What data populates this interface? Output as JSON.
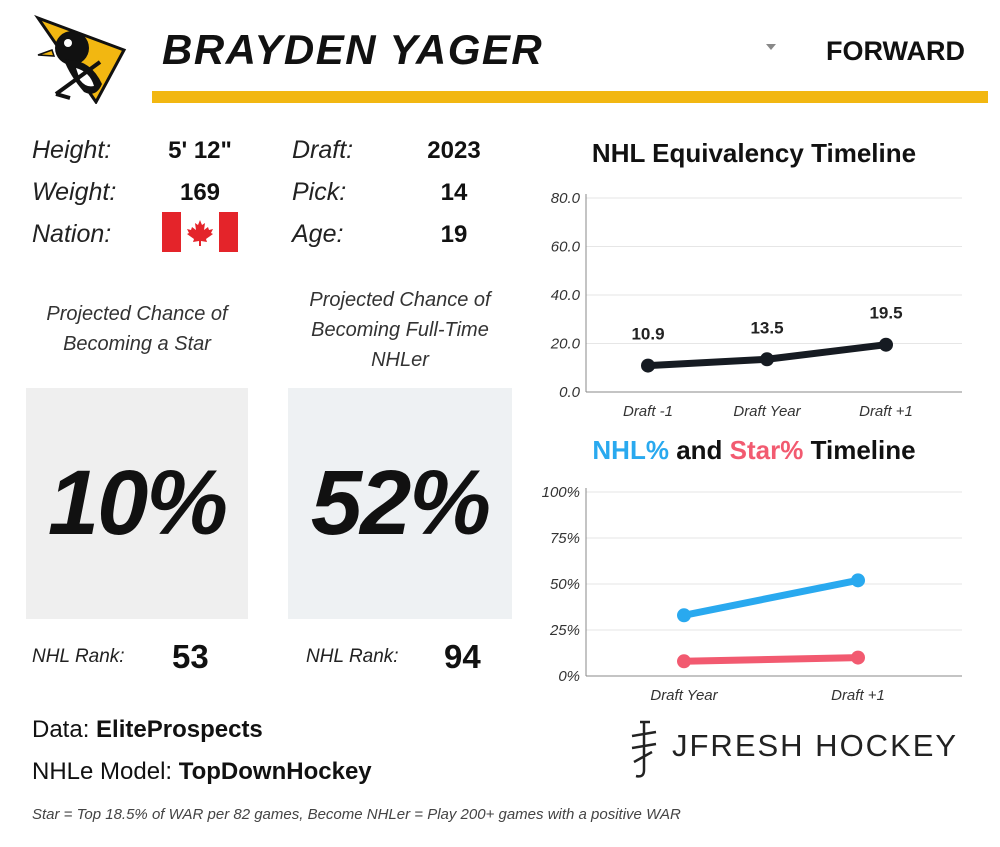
{
  "header": {
    "player_name": "BRAYDEN YAGER",
    "position": "FORWARD",
    "bar_color": "#f2b711"
  },
  "bio": {
    "height_label": "Height:",
    "height_value": "5' 12\"",
    "weight_label": "Weight:",
    "weight_value": "169",
    "nation_label": "Nation:",
    "nation_flag": "canada-flag-icon",
    "draft_label": "Draft:",
    "draft_value": "2023",
    "pick_label": "Pick:",
    "pick_value": "14",
    "age_label": "Age:",
    "age_value": "19"
  },
  "projections": {
    "star": {
      "title": "Projected Chance of Becoming a Star",
      "value": "10%",
      "rank_label": "NHL Rank:",
      "rank_value": "53"
    },
    "nhler": {
      "title": "Projected Chance of Becoming Full-Time NHLer",
      "value": "52%",
      "rank_label": "NHL Rank:",
      "rank_value": "94"
    }
  },
  "credits": {
    "data_label": "Data:",
    "data_value": "EliteProspects",
    "model_label": "NHLe Model:",
    "model_value": "TopDownHockey",
    "footnote": "Star = Top 18.5% of WAR per 82 games, Become NHLer = Play 200+ games with a positive WAR"
  },
  "brand": {
    "text": "JFRESH HOCKEY"
  },
  "chart_data": [
    {
      "type": "line",
      "title": "NHL Equivalency Timeline",
      "categories": [
        "Draft -1",
        "Draft Year",
        "Draft +1"
      ],
      "series": [
        {
          "values": [
            10.9,
            13.5,
            19.5
          ],
          "color": "#161b22"
        }
      ],
      "data_labels": [
        "10.9",
        "13.5",
        "19.5"
      ],
      "ylim": [
        0,
        80
      ],
      "yticks": [
        "0.0",
        "20.0",
        "40.0",
        "60.0",
        "80.0"
      ],
      "yticks_values": [
        0,
        20,
        40,
        60,
        80
      ],
      "grid": true
    },
    {
      "type": "line",
      "title_parts": {
        "nhl": "NHL%",
        "and": " and ",
        "star": "Star%",
        "rest": " Timeline"
      },
      "title_colors": {
        "nhl": "#29a9ef",
        "star": "#f25a70"
      },
      "categories": [
        "Draft Year",
        "Draft +1"
      ],
      "series": [
        {
          "name": "NHL%",
          "values": [
            33,
            52
          ],
          "color": "#29a9ef"
        },
        {
          "name": "Star%",
          "values": [
            8,
            10
          ],
          "color": "#f25a70"
        }
      ],
      "ylim": [
        0,
        100
      ],
      "yticks": [
        "0%",
        "25%",
        "50%",
        "75%",
        "100%"
      ],
      "yticks_values": [
        0,
        25,
        50,
        75,
        100
      ],
      "grid": true
    }
  ],
  "colors": {
    "box_star": "#efefef",
    "box_nhler": "#eef1f3"
  }
}
